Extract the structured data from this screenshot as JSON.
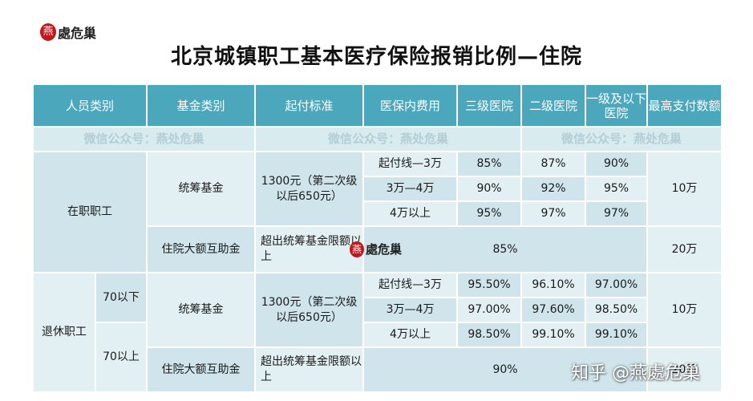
{
  "logo": {
    "seal_char": "燕",
    "text": "處危巢"
  },
  "title": "北京城镇职工基本医疗保险报销比例—住院",
  "watermarks": [
    "微信公众号：燕处危巢",
    "微信公众号：燕处危巢",
    "微信公众号：燕处危巢"
  ],
  "headers": [
    "人员类别",
    "基金类别",
    "起付标准",
    "医保内费用",
    "三级医院",
    "二级医院",
    "一级及以下医院",
    "最高支付数额"
  ],
  "incumbent": {
    "category": "在职职工",
    "pooled_fund": "统筹基金",
    "threshold": "1300元（第二次级以后650元）",
    "rows": [
      {
        "range": "起付线—3万",
        "tier3": "85%",
        "tier2": "87%",
        "tier1": "90%"
      },
      {
        "range": "3万—4万",
        "tier3": "90%",
        "tier2": "92%",
        "tier1": "95%"
      },
      {
        "range": "4万以上",
        "tier3": "95%",
        "tier2": "97%",
        "tier1": "97%"
      }
    ],
    "pooled_max": "10万",
    "large_fund": "住院大额互助金",
    "large_threshold": "超出统筹基金限额以上",
    "large_ratio": "85%",
    "large_max": "20万"
  },
  "retired": {
    "category": "退休职工",
    "age_under": "70以下",
    "age_over": "70以上",
    "pooled_fund": "统筹基金",
    "threshold": "1300元（第二次级以后650元）",
    "rows": [
      {
        "range": "起付线—3万",
        "tier3": "95.50%",
        "tier2": "96.10%",
        "tier1": "97.00%"
      },
      {
        "range": "3万—4万",
        "tier3": "97.00%",
        "tier2": "97.60%",
        "tier1": "98.50%"
      },
      {
        "range": "4万以上",
        "tier3": "98.50%",
        "tier2": "99.10%",
        "tier1": "99.10%"
      }
    ],
    "pooled_max": "10万",
    "large_fund": "住院大额互助金",
    "large_threshold": "超出统筹基金限额以上",
    "large_ratio": "90%",
    "large_max": "20万"
  },
  "footer_watermark": "知乎 @燕處危巢"
}
